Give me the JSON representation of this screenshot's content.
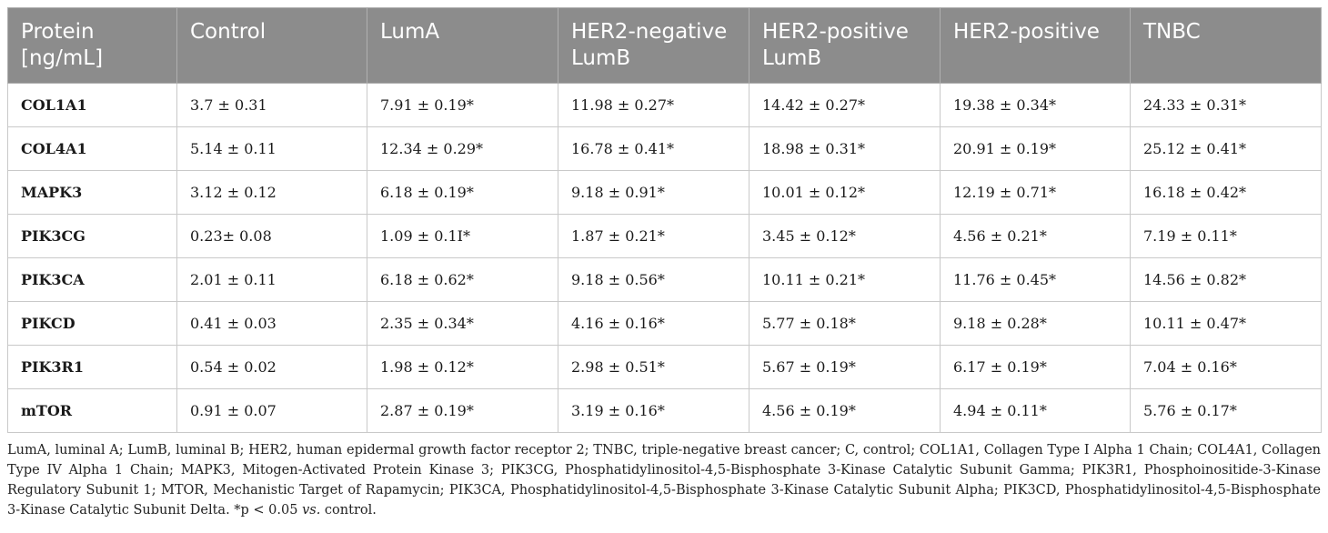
{
  "table": {
    "headers": [
      "Protein [ng/mL]",
      "Control",
      "LumA",
      "HER2-negative LumB",
      "HER2-positive LumB",
      "HER2-positive",
      "TNBC"
    ],
    "rows": [
      {
        "protein": "COL1A1",
        "values": [
          "3.7 ± 0.31",
          "7.91 ± 0.19*",
          "11.98 ± 0.27*",
          "14.42 ± 0.27*",
          "19.38 ± 0.34*",
          "24.33 ± 0.31*"
        ]
      },
      {
        "protein": "COL4A1",
        "values": [
          "5.14 ± 0.11",
          "12.34 ± 0.29*",
          "16.78 ± 0.41*",
          "18.98 ± 0.31*",
          "20.91 ± 0.19*",
          "25.12 ± 0.41*"
        ]
      },
      {
        "protein": "MAPK3",
        "values": [
          "3.12 ± 0.12",
          "6.18 ± 0.19*",
          "9.18 ± 0.91*",
          "10.01 ± 0.12*",
          "12.19 ± 0.71*",
          "16.18 ± 0.42*"
        ]
      },
      {
        "protein": "PIK3CG",
        "values": [
          "0.23± 0.08",
          "1.09 ± 0.1I*",
          "1.87 ± 0.21*",
          "3.45 ± 0.12*",
          "4.56 ± 0.21*",
          "7.19 ± 0.11*"
        ]
      },
      {
        "protein": "PIK3CA",
        "values": [
          "2.01 ± 0.11",
          "6.18 ± 0.62*",
          "9.18 ± 0.56*",
          "10.11 ± 0.21*",
          "11.76 ± 0.45*",
          "14.56 ± 0.82*"
        ]
      },
      {
        "protein": "PIKCD",
        "values": [
          "0.41 ± 0.03",
          "2.35 ± 0.34*",
          "4.16 ± 0.16*",
          "5.77 ± 0.18*",
          "9.18 ± 0.28*",
          "10.11 ± 0.47*"
        ]
      },
      {
        "protein": "PIK3R1",
        "values": [
          "0.54 ± 0.02",
          "1.98 ± 0.12*",
          "2.98 ± 0.51*",
          "5.67 ± 0.19*",
          "6.17 ± 0.19*",
          "7.04 ± 0.16*"
        ]
      },
      {
        "protein": "mTOR",
        "values": [
          "0.91 ± 0.07",
          "2.87 ± 0.19*",
          "3.19 ± 0.16*",
          "4.56 ± 0.19*",
          "4.94 ± 0.11*",
          "5.76 ± 0.17*"
        ]
      }
    ]
  },
  "footnote": {
    "main": "LumA, luminal A; LumB, luminal B; HER2, human epidermal growth factor receptor 2; TNBC, triple-negative breast cancer; C, control; COL1A1, Collagen Type I Alpha 1 Chain; COL4A1, Collagen Type IV Alpha 1 Chain; MAPK3, Mitogen-Activated Protein Kinase 3; PIK3CG, Phosphatidylinositol-4,5-Bisphosphate 3-Kinase Catalytic Subunit Gamma; PIK3R1, Phosphoinositide-3-Kinase Regulatory Subunit 1; MTOR, Mechanistic Target of Rapamycin; PIK3CA, Phosphatidylinositol-4,5-Bisphosphate 3-Kinase Catalytic Subunit Alpha; PIK3CD, Phosphatidylinositol-4,5-Bisphosphate 3-Kinase Catalytic Subunit Delta. *p < 0.05 ",
    "vs": "vs.",
    "tail": " control."
  }
}
